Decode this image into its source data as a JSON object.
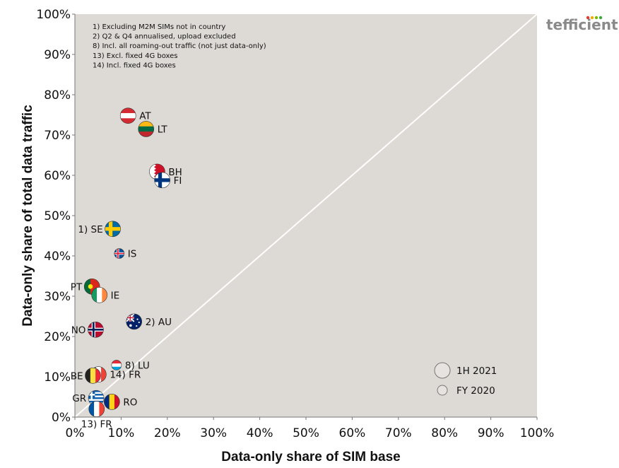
{
  "brand": {
    "name": "tefficient",
    "dot_colors": [
      "#e03c31",
      "#f2a900",
      "#7ab800",
      "#3aaa35"
    ]
  },
  "colors": {
    "plot_bg": "#ddd9d5",
    "diagonal": "#ffffff",
    "axis": "#777777"
  },
  "chart_data": {
    "type": "scatter",
    "title": "",
    "xlabel": "Data-only share of SIM base",
    "ylabel": "Data-only share of total data traffic",
    "xlim": [
      0,
      100
    ],
    "ylim": [
      0,
      100
    ],
    "x_ticks": [
      "0%",
      "10%",
      "20%",
      "30%",
      "40%",
      "50%",
      "60%",
      "70%",
      "80%",
      "90%",
      "100%"
    ],
    "y_ticks": [
      "0%",
      "10%",
      "20%",
      "30%",
      "40%",
      "50%",
      "60%",
      "70%",
      "80%",
      "90%",
      "100%"
    ],
    "grid": false,
    "reference_line": "diagonal y = x",
    "notes": [
      "1) Excluding M2M SIMs not in country",
      "2) Q2 & Q4 annualised, upload excluded",
      "8) Incl. all roaming-out traffic (not just data-only)",
      "13) Excl. fixed 4G boxes",
      "14) Incl. fixed 4G boxes"
    ],
    "legend": {
      "position": "bottom-right",
      "entries": [
        {
          "label": "1H 2021",
          "size": "large"
        },
        {
          "label": "FY 2020",
          "size": "small"
        }
      ]
    },
    "points": [
      {
        "label": "AT",
        "x": 11.5,
        "y": 74.8,
        "period": "1H 2021",
        "flag": "at",
        "label_side": "right"
      },
      {
        "label": "LT",
        "x": 15.4,
        "y": 71.5,
        "period": "1H 2021",
        "flag": "lt",
        "label_side": "right"
      },
      {
        "label": "BH",
        "x": 17.8,
        "y": 60.9,
        "period": "1H 2021",
        "flag": "bh",
        "label_side": "right"
      },
      {
        "label": "FI",
        "x": 18.9,
        "y": 58.8,
        "period": "1H 2021",
        "flag": "fi",
        "label_side": "right"
      },
      {
        "label": "1) SE",
        "x": 8.2,
        "y": 46.7,
        "period": "1H 2021",
        "flag": "se",
        "label_side": "left"
      },
      {
        "label": "IS",
        "x": 9.6,
        "y": 40.6,
        "period": "FY 2020",
        "flag": "is",
        "label_side": "right"
      },
      {
        "label": "PT",
        "x": 3.7,
        "y": 32.4,
        "period": "1H 2021",
        "flag": "pt",
        "label_side": "left"
      },
      {
        "label": "IE",
        "x": 5.3,
        "y": 30.3,
        "period": "1H 2021",
        "flag": "ie",
        "label_side": "right"
      },
      {
        "label": "2) AU",
        "x": 12.8,
        "y": 23.7,
        "period": "1H 2021",
        "flag": "au",
        "label_side": "right"
      },
      {
        "label": "NO",
        "x": 4.5,
        "y": 21.7,
        "period": "1H 2021",
        "flag": "no",
        "label_side": "left"
      },
      {
        "label": "8) LU",
        "x": 9.0,
        "y": 12.9,
        "period": "FY 2020",
        "flag": "lu",
        "label_side": "right"
      },
      {
        "label": "14) FR",
        "x": 5.1,
        "y": 10.6,
        "period": "1H 2021",
        "flag": "fr",
        "label_side": "right"
      },
      {
        "label": "BE",
        "x": 3.9,
        "y": 10.3,
        "period": "1H 2021",
        "flag": "be",
        "label_side": "left"
      },
      {
        "label": "GR",
        "x": 4.6,
        "y": 4.7,
        "period": "1H 2021",
        "flag": "gr",
        "label_side": "left"
      },
      {
        "label": "RO",
        "x": 8.0,
        "y": 3.8,
        "period": "1H 2021",
        "flag": "ro",
        "label_side": "right"
      },
      {
        "label": "13) FR",
        "x": 4.7,
        "y": 2.0,
        "period": "1H 2021",
        "flag": "fr",
        "label_side": "below"
      }
    ]
  }
}
